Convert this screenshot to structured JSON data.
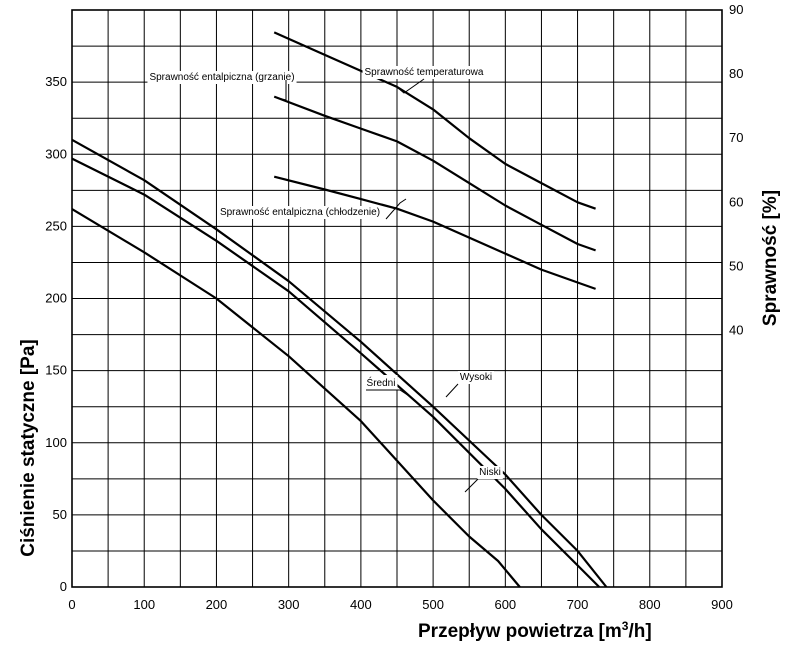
{
  "chart_data": {
    "type": "line",
    "title": "",
    "xlabel": "Przepływ powietrza [m³/h]",
    "ylabel_left": "Ciśnienie statyczne [Pa]",
    "ylabel_right": "Sprawność [%]",
    "xlim": [
      0,
      900
    ],
    "ylim_left": [
      0,
      400
    ],
    "ylim_right": [
      0,
      90
    ],
    "grid": true,
    "x_ticks": [
      "0",
      "100",
      "200",
      "300",
      "400",
      "500",
      "600",
      "700",
      "800",
      "900"
    ],
    "y_left_ticks": [
      "0",
      "50",
      "100",
      "150",
      "200",
      "250",
      "300",
      "350"
    ],
    "y_right_ticks": [
      "40",
      "50",
      "60",
      "70",
      "80",
      "90"
    ],
    "pressure_series": [
      {
        "name": "Wysoki",
        "x": [
          0,
          100,
          200,
          300,
          400,
          500,
          600,
          650,
          700,
          740
        ],
        "y": [
          310,
          282,
          248,
          212,
          170,
          125,
          78,
          50,
          25,
          0
        ]
      },
      {
        "name": "Średni",
        "x": [
          0,
          100,
          200,
          300,
          400,
          500,
          600,
          650,
          700,
          730
        ],
        "y": [
          297,
          272,
          240,
          205,
          162,
          118,
          68,
          40,
          15,
          0
        ]
      },
      {
        "name": "Niski",
        "x": [
          0,
          100,
          200,
          300,
          400,
          500,
          550,
          590,
          620
        ],
        "y": [
          262,
          232,
          200,
          160,
          115,
          60,
          35,
          18,
          0
        ]
      }
    ],
    "efficiency_series": [
      {
        "name": "Sprawność temperaturowa",
        "x": [
          280,
          350,
          400,
          450,
          500,
          550,
          600,
          650,
          700,
          725
        ],
        "y": [
          86.5,
          83,
          80.5,
          78,
          74.5,
          70,
          66,
          63,
          60,
          59
        ]
      },
      {
        "name": "Sprawność entalpiczna (grzanie)",
        "x": [
          280,
          350,
          400,
          450,
          500,
          550,
          600,
          650,
          700,
          725
        ],
        "y": [
          76.5,
          73.5,
          71.5,
          69.5,
          66.5,
          63,
          59.5,
          56.5,
          53.5,
          52.5
        ]
      },
      {
        "name": "Sprawność entalpiczna (chłodzenie)",
        "x": [
          280,
          350,
          400,
          450,
          500,
          550,
          600,
          650,
          700,
          725
        ],
        "y": [
          64,
          62,
          60.5,
          59,
          57,
          54.5,
          52,
          49.5,
          47.5,
          46.5
        ]
      }
    ]
  }
}
